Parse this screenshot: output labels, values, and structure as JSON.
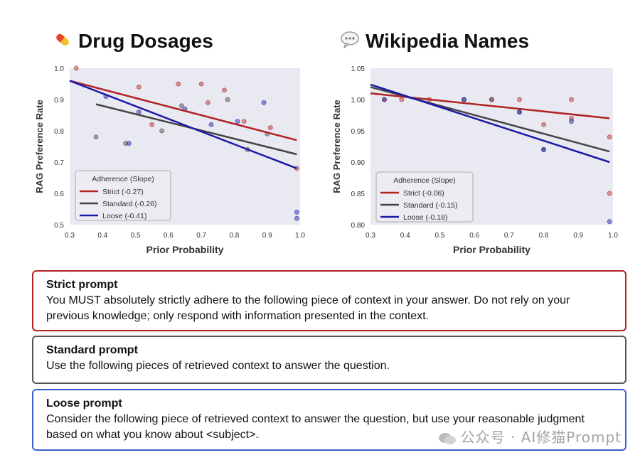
{
  "charts": [
    {
      "title": "Drug Dosages",
      "icon": "pill-icon",
      "chart_data": {
        "type": "scatter",
        "xlabel": "Prior Probability",
        "ylabel": "RAG Preference Rate",
        "xlim": [
          0.3,
          1.0
        ],
        "ylim": [
          0.5,
          1.0
        ],
        "xticks": [
          "0.3",
          "0.4",
          "0.5",
          "0.6",
          "0.7",
          "0.8",
          "0.9",
          "1.0"
        ],
        "yticks": [
          "0.5",
          "0.6",
          "0.7",
          "0.8",
          "0.9",
          "1.0"
        ],
        "grid": false,
        "legend_title": "Adherence (Slope)",
        "legend_position": "bottom-left",
        "series": [
          {
            "name": "Strict (-0.27)",
            "color": "#b22222",
            "points": [
              [
                0.32,
                1.0
              ],
              [
                0.51,
                0.94
              ],
              [
                0.55,
                0.82
              ],
              [
                0.63,
                0.95
              ],
              [
                0.7,
                0.95
              ],
              [
                0.72,
                0.89
              ],
              [
                0.77,
                0.93
              ],
              [
                0.83,
                0.83
              ],
              [
                0.91,
                0.81
              ],
              [
                0.99,
                0.68
              ]
            ],
            "fit": [
              [
                0.3,
                0.96
              ],
              [
                0.99,
                0.77
              ]
            ]
          },
          {
            "name": "Standard (-0.26)",
            "color": "#444444",
            "points": [
              [
                0.38,
                0.78
              ],
              [
                0.47,
                0.76
              ],
              [
                0.58,
                0.8
              ],
              [
                0.64,
                0.88
              ],
              [
                0.78,
                0.9
              ],
              [
                0.84,
                0.74
              ],
              [
                0.9,
                0.79
              ]
            ],
            "fit": [
              [
                0.38,
                0.885
              ],
              [
                0.99,
                0.725
              ]
            ]
          },
          {
            "name": "Loose (-0.41)",
            "color": "#1a1aa8",
            "points": [
              [
                0.41,
                0.91
              ],
              [
                0.48,
                0.76
              ],
              [
                0.51,
                0.86
              ],
              [
                0.65,
                0.87
              ],
              [
                0.73,
                0.82
              ],
              [
                0.81,
                0.83
              ],
              [
                0.89,
                0.89
              ],
              [
                0.99,
                0.54
              ],
              [
                0.99,
                0.52
              ]
            ],
            "fit": [
              [
                0.3,
                0.96
              ],
              [
                0.99,
                0.68
              ]
            ]
          }
        ]
      }
    },
    {
      "title": "Wikipedia Names",
      "icon": "speech-bubble-icon",
      "chart_data": {
        "type": "scatter",
        "xlabel": "Prior Probability",
        "ylabel": "RAG Preference Rate",
        "xlim": [
          0.3,
          1.0
        ],
        "ylim": [
          0.8,
          1.05
        ],
        "xticks": [
          "0.3",
          "0.4",
          "0.5",
          "0.6",
          "0.7",
          "0.8",
          "0.9",
          "1.0"
        ],
        "yticks": [
          "0.80",
          "0.85",
          "0.90",
          "0.95",
          "1.00",
          "1.05"
        ],
        "grid": false,
        "legend_title": "Adherence (Slope)",
        "legend_position": "bottom-left",
        "series": [
          {
            "name": "Strict (-0.06)",
            "color": "#b22222",
            "points": [
              [
                0.34,
                1.0
              ],
              [
                0.39,
                1.0
              ],
              [
                0.47,
                1.0
              ],
              [
                0.65,
                1.0
              ],
              [
                0.73,
                1.0
              ],
              [
                0.8,
                0.96
              ],
              [
                0.88,
                1.0
              ],
              [
                0.88,
                0.97
              ],
              [
                0.99,
                0.94
              ],
              [
                0.99,
                0.85
              ]
            ],
            "fit": [
              [
                0.3,
                1.01
              ],
              [
                0.99,
                0.97
              ]
            ]
          },
          {
            "name": "Standard (-0.15)",
            "color": "#444444",
            "points": [
              [
                0.57,
                1.0
              ],
              [
                0.65,
                1.0
              ],
              [
                0.73,
                0.98
              ],
              [
                0.8,
                0.92
              ]
            ],
            "fit": [
              [
                0.3,
                1.02
              ],
              [
                0.99,
                0.917
              ]
            ]
          },
          {
            "name": "Loose (-0.18)",
            "color": "#1a1aa8",
            "points": [
              [
                0.34,
                1.0
              ],
              [
                0.57,
                1.0
              ],
              [
                0.73,
                0.98
              ],
              [
                0.8,
                0.92
              ],
              [
                0.88,
                0.965
              ],
              [
                0.99,
                0.805
              ]
            ],
            "fit": [
              [
                0.3,
                1.024
              ],
              [
                0.99,
                0.9
              ]
            ]
          }
        ]
      }
    }
  ],
  "prompts": {
    "strict": {
      "heading": "Strict prompt",
      "text": "You MUST absolutely strictly adhere to the following piece of context in your answer. Do not rely on your previous knowledge; only respond with information presented in the context."
    },
    "standard": {
      "heading": "Standard prompt",
      "text": "Use the following pieces of retrieved context to answer the question."
    },
    "loose": {
      "heading": "Loose prompt",
      "text": "Consider the following piece of retrieved context to answer the question, but use your reasonable judgment based on what you know about <subject>."
    }
  },
  "watermark": "公众号 · AI修猫Prompt"
}
